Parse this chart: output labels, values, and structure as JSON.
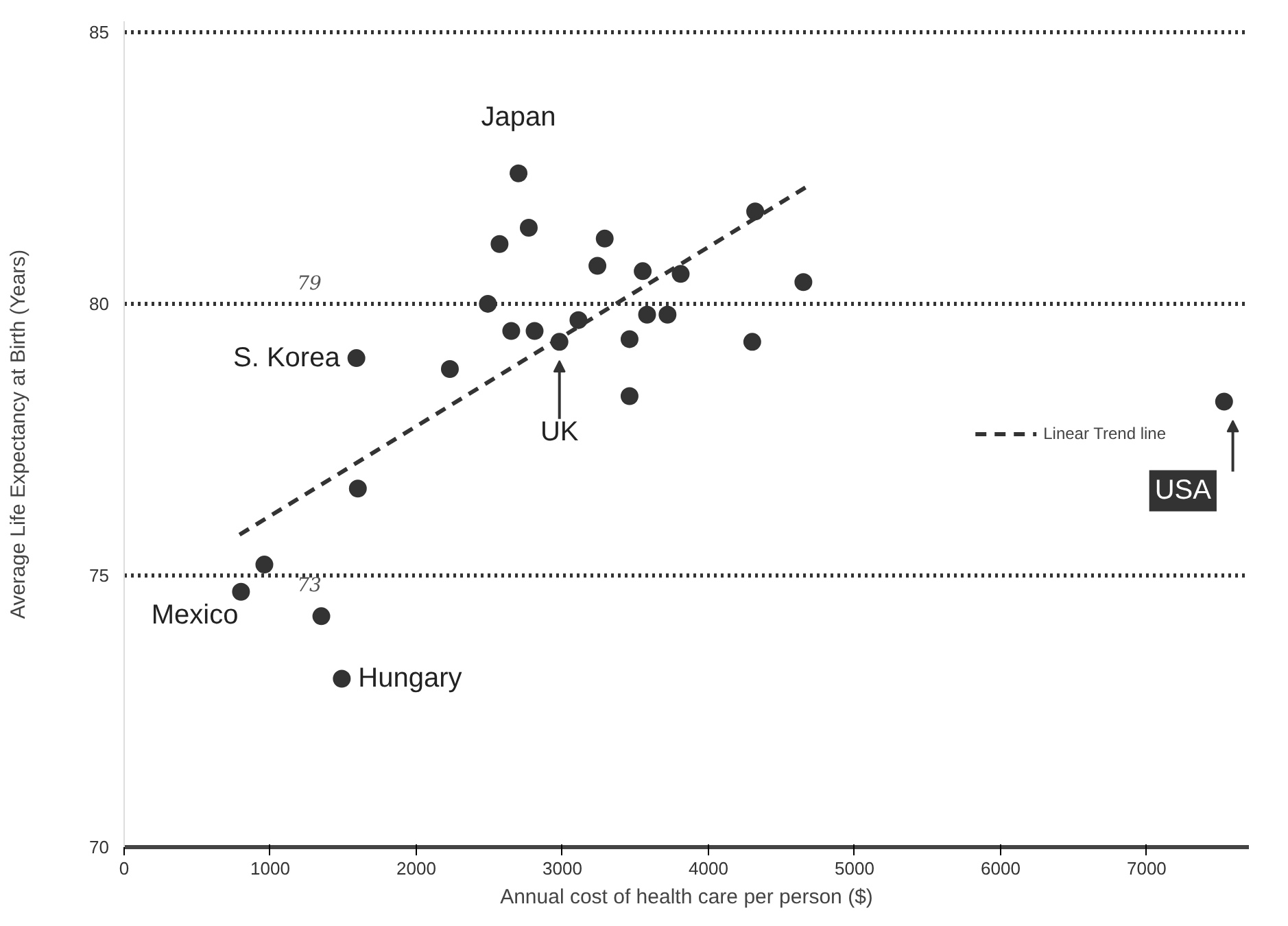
{
  "chart_data": {
    "type": "scatter",
    "xlabel": "Annual cost of health care per person ($)",
    "ylabel": "Average Life Expectancy at Birth (Years)",
    "xlim": [
      0,
      7700
    ],
    "ylim": [
      70,
      85.2
    ],
    "xticks": [
      0,
      1000,
      2000,
      3000,
      4000,
      5000,
      6000,
      7000
    ],
    "yticks": [
      70,
      75,
      80,
      85
    ],
    "grid": "y",
    "legend": "right",
    "series": [
      {
        "marker": "circle",
        "color": "#333333",
        "x": [
          2700,
          2570,
          2770,
          3290,
          3240,
          3550,
          3810,
          2490,
          2650,
          2810,
          2980,
          3110,
          3460,
          3580,
          3720,
          3460,
          2230,
          1590,
          1600,
          4650,
          4300,
          4320,
          7530,
          800,
          960,
          1350,
          1490
        ],
        "values": [
          82.4,
          81.1,
          81.4,
          81.2,
          80.7,
          80.6,
          80.55,
          80.0,
          79.5,
          79.5,
          79.3,
          79.7,
          79.35,
          79.8,
          79.8,
          78.3,
          78.8,
          79.0,
          76.6,
          80.4,
          79.3,
          81.7,
          78.2,
          74.7,
          75.2,
          74.25,
          73.1
        ]
      },
      {
        "type": "line",
        "name": "Linear Trend line",
        "color": "#333333",
        "line_style": "dashed",
        "x": [
          790,
          4700
        ],
        "values": [
          75.75,
          82.2
        ]
      }
    ],
    "annotations": [
      {
        "text": "Japan",
        "x": 2700,
        "y": 82.4
      },
      {
        "text": "S. Korea",
        "x": 1590,
        "y": 79.0
      },
      {
        "text": "UK",
        "x": 2980,
        "y": 79.3
      },
      {
        "text": "USA",
        "x": 7530,
        "y": 78.2
      },
      {
        "text": "Mexico",
        "x": 800,
        "y": 74.7
      },
      {
        "text": "Hungary",
        "x": 1490,
        "y": 73.1
      },
      "79",
      "73"
    ]
  }
}
